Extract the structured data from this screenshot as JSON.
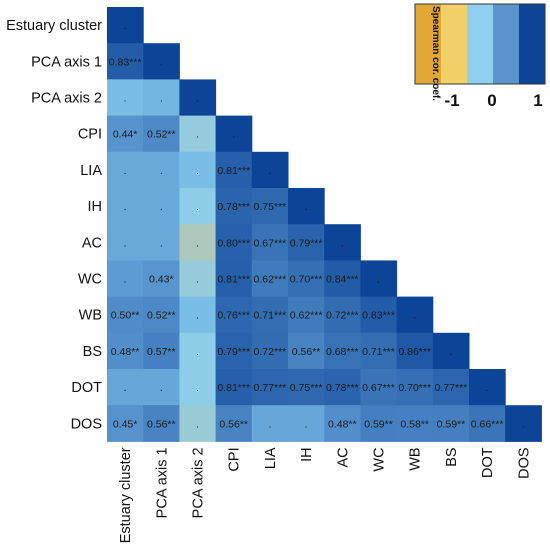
{
  "chart_data": {
    "type": "heatmap",
    "labels": [
      "Estuary cluster",
      "PCA axis 1",
      "PCA axis 2",
      "CPI",
      "LIA",
      "IH",
      "AC",
      "WC",
      "WB",
      "BS",
      "DOT",
      "DOS"
    ],
    "cells": [
      [
        {
          "v": 1.0,
          "t": "."
        }
      ],
      [
        {
          "v": 0.83,
          "t": "0.83***"
        },
        {
          "v": 1.0,
          "t": "."
        }
      ],
      [
        {
          "v": 0.12,
          "t": "."
        },
        {
          "v": 0.18,
          "t": "."
        },
        {
          "v": 1.0,
          "t": "."
        }
      ],
      [
        {
          "v": 0.44,
          "t": "0.44*"
        },
        {
          "v": 0.52,
          "t": "0.52**"
        },
        {
          "v": -0.1,
          "t": "."
        },
        {
          "v": 1.0,
          "t": "."
        }
      ],
      [
        {
          "v": 0.28,
          "t": "."
        },
        {
          "v": 0.28,
          "t": "."
        },
        {
          "v": 0.12,
          "t": "."
        },
        {
          "v": 0.81,
          "t": "0.81***"
        },
        {
          "v": 1.0,
          "t": "."
        }
      ],
      [
        {
          "v": 0.28,
          "t": "."
        },
        {
          "v": 0.28,
          "t": "."
        },
        {
          "v": -0.05,
          "t": "."
        },
        {
          "v": 0.78,
          "t": "0.78***"
        },
        {
          "v": 0.75,
          "t": "0.75***"
        },
        {
          "v": 1.0,
          "t": "."
        }
      ],
      [
        {
          "v": 0.28,
          "t": "."
        },
        {
          "v": 0.28,
          "t": "."
        },
        {
          "v": -0.3,
          "t": "."
        },
        {
          "v": 0.8,
          "t": "0.80***"
        },
        {
          "v": 0.67,
          "t": "0.67***"
        },
        {
          "v": 0.79,
          "t": "0.79***"
        },
        {
          "v": 1.0,
          "t": "."
        }
      ],
      [
        {
          "v": 0.38,
          "t": "."
        },
        {
          "v": 0.43,
          "t": "0.43*"
        },
        {
          "v": -0.12,
          "t": "."
        },
        {
          "v": 0.81,
          "t": "0.81***"
        },
        {
          "v": 0.62,
          "t": "0.62***"
        },
        {
          "v": 0.7,
          "t": "0.70***"
        },
        {
          "v": 0.84,
          "t": "0.84***"
        },
        {
          "v": 1.0,
          "t": "."
        }
      ],
      [
        {
          "v": 0.5,
          "t": "0.50**"
        },
        {
          "v": 0.52,
          "t": "0.52**"
        },
        {
          "v": 0.12,
          "t": "."
        },
        {
          "v": 0.76,
          "t": "0.76***"
        },
        {
          "v": 0.71,
          "t": "0.71***"
        },
        {
          "v": 0.62,
          "t": "0.62***"
        },
        {
          "v": 0.72,
          "t": "0.72***"
        },
        {
          "v": 0.83,
          "t": "0.83***"
        },
        {
          "v": 1.0,
          "t": "."
        }
      ],
      [
        {
          "v": 0.48,
          "t": "0.48**"
        },
        {
          "v": 0.57,
          "t": "0.57**"
        },
        {
          "v": -0.05,
          "t": "."
        },
        {
          "v": 0.79,
          "t": "0.79***"
        },
        {
          "v": 0.72,
          "t": "0.72***"
        },
        {
          "v": 0.56,
          "t": "0.56**"
        },
        {
          "v": 0.68,
          "t": "0.68***"
        },
        {
          "v": 0.71,
          "t": "0.71***"
        },
        {
          "v": 0.86,
          "t": "0.86***"
        },
        {
          "v": 1.0,
          "t": "."
        }
      ],
      [
        {
          "v": 0.3,
          "t": "."
        },
        {
          "v": 0.3,
          "t": "."
        },
        {
          "v": -0.05,
          "t": "."
        },
        {
          "v": 0.81,
          "t": "0.81***"
        },
        {
          "v": 0.77,
          "t": "0.77***"
        },
        {
          "v": 0.75,
          "t": "0.75***"
        },
        {
          "v": 0.78,
          "t": "0.78***"
        },
        {
          "v": 0.67,
          "t": "0.67***"
        },
        {
          "v": 0.7,
          "t": "0.70***"
        },
        {
          "v": 0.77,
          "t": "0.77***"
        },
        {
          "v": 1.0,
          "t": "."
        }
      ],
      [
        {
          "v": 0.45,
          "t": "0.45*"
        },
        {
          "v": 0.56,
          "t": "0.56**"
        },
        {
          "v": -0.15,
          "t": "."
        },
        {
          "v": 0.56,
          "t": "0.56**"
        },
        {
          "v": 0.3,
          "t": "."
        },
        {
          "v": 0.3,
          "t": "."
        },
        {
          "v": 0.48,
          "t": "0.48**"
        },
        {
          "v": 0.59,
          "t": "0.59**"
        },
        {
          "v": 0.58,
          "t": "0.58**"
        },
        {
          "v": 0.59,
          "t": "0.59**"
        },
        {
          "v": 0.66,
          "t": "0.66***"
        },
        {
          "v": 1.0,
          "t": "."
        }
      ]
    ],
    "legend": {
      "title": "Spearman cor. coef.",
      "ticks": [
        "-1",
        "0",
        "1"
      ],
      "colors": [
        "#e2a835",
        "#f0d067",
        "#8fd0ef",
        "#5b93cb",
        "#0c4597"
      ]
    },
    "value_range": [
      -1,
      1
    ]
  }
}
